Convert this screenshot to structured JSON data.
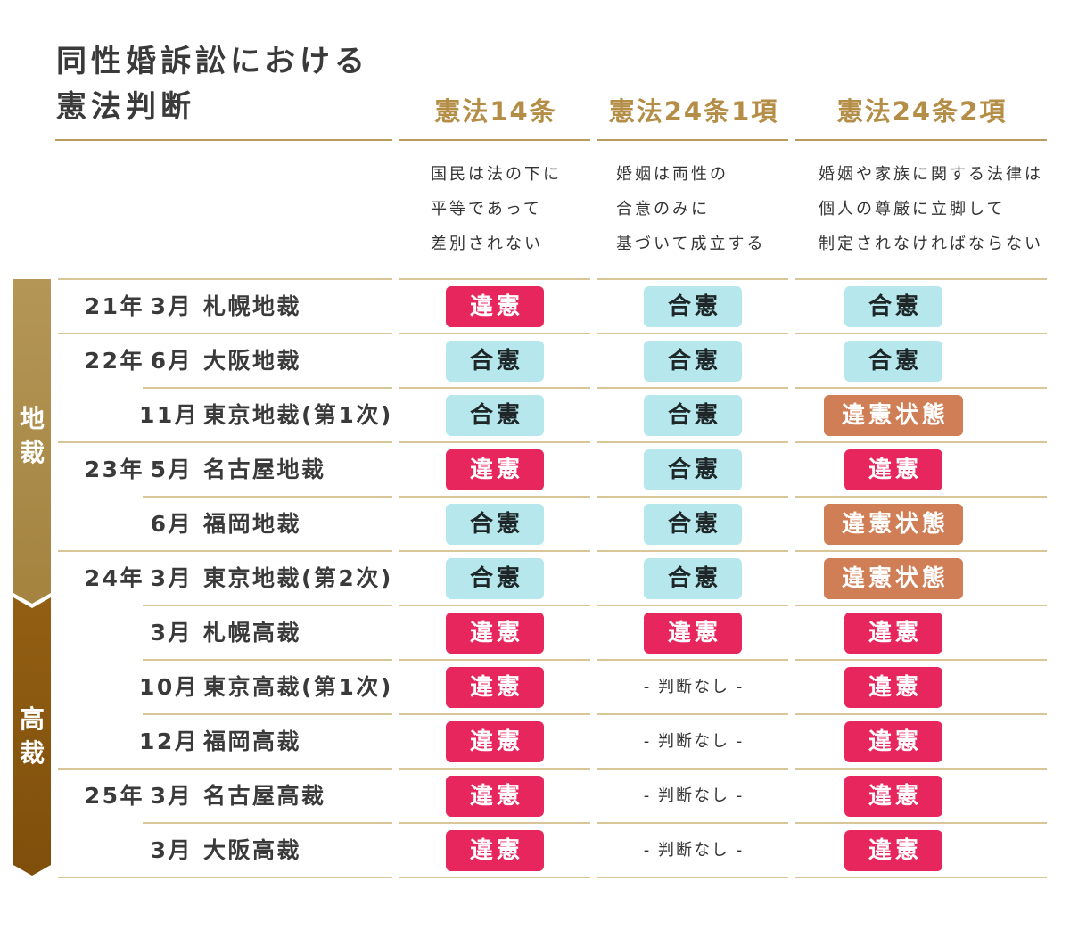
{
  "chart_data": {
    "type": "table",
    "title": [
      "同性婚訴訟における",
      "憲法判断"
    ],
    "columns": [
      {
        "header": "憲法14条",
        "description": [
          "国民は法の下に",
          "平等であって",
          "差別されない"
        ]
      },
      {
        "header": "憲法24条1項",
        "description": [
          "婚姻は両性の",
          "合意のみに",
          "基づいて成立する"
        ]
      },
      {
        "header": "憲法24条2項",
        "description": [
          "婚姻や家族に関する法律は",
          "個人の尊厳に立脚して",
          "制定されなければならない"
        ]
      }
    ],
    "groups": [
      {
        "label": "地裁",
        "rows": [
          {
            "year": "21年",
            "month": "3月",
            "court": "札幌地裁",
            "results": [
              "違憲",
              "合憲",
              "合憲"
            ]
          },
          {
            "year": "22年",
            "month": "6月",
            "court": "大阪地裁",
            "results": [
              "合憲",
              "合憲",
              "合憲"
            ]
          },
          {
            "month": "11月",
            "court": "東京地裁(第1次)",
            "results": [
              "合憲",
              "合憲",
              "違憲状態"
            ]
          },
          {
            "year": "23年",
            "month": "5月",
            "court": "名古屋地裁",
            "results": [
              "違憲",
              "合憲",
              "違憲"
            ]
          },
          {
            "month": "6月",
            "court": "福岡地裁",
            "results": [
              "合憲",
              "合憲",
              "違憲状態"
            ]
          },
          {
            "year": "24年",
            "month": "3月",
            "court": "東京地裁(第2次)",
            "results": [
              "合憲",
              "合憲",
              "違憲状態"
            ]
          }
        ]
      },
      {
        "label": "高裁",
        "rows": [
          {
            "month": "3月",
            "court": "札幌高裁",
            "results": [
              "違憲",
              "違憲",
              "違憲"
            ]
          },
          {
            "month": "10月",
            "court": "東京高裁(第1次)",
            "results": [
              "違憲",
              "- 判断なし -",
              "違憲"
            ]
          },
          {
            "month": "12月",
            "court": "福岡高裁",
            "results": [
              "違憲",
              "- 判断なし -",
              "違憲"
            ]
          },
          {
            "year": "25年",
            "month": "3月",
            "court": "名古屋高裁",
            "results": [
              "違憲",
              "- 判断なし -",
              "違憲"
            ]
          },
          {
            "month": "3月",
            "court": "大阪高裁",
            "results": [
              "違憲",
              "- 判断なし -",
              "違憲"
            ]
          }
        ]
      }
    ]
  },
  "colors": {
    "accent_gold": "#b48d46",
    "header_rule": "#bb9c60",
    "row_rule": "#d8c698",
    "court_bars": [
      {
        "from": "#b49657",
        "to": "#a4833f"
      },
      {
        "from": "#925f13",
        "to": "#7f4f0b"
      }
    ],
    "verdicts": [
      {
        "label": "違憲",
        "background": "#e8265e",
        "text": "#ffffff"
      },
      {
        "label": "合憲",
        "background": "#b5e7ec",
        "text": "#1e2628"
      },
      {
        "label": "違憲状態",
        "background": "#d07e55",
        "text": "#ffffff"
      }
    ]
  }
}
